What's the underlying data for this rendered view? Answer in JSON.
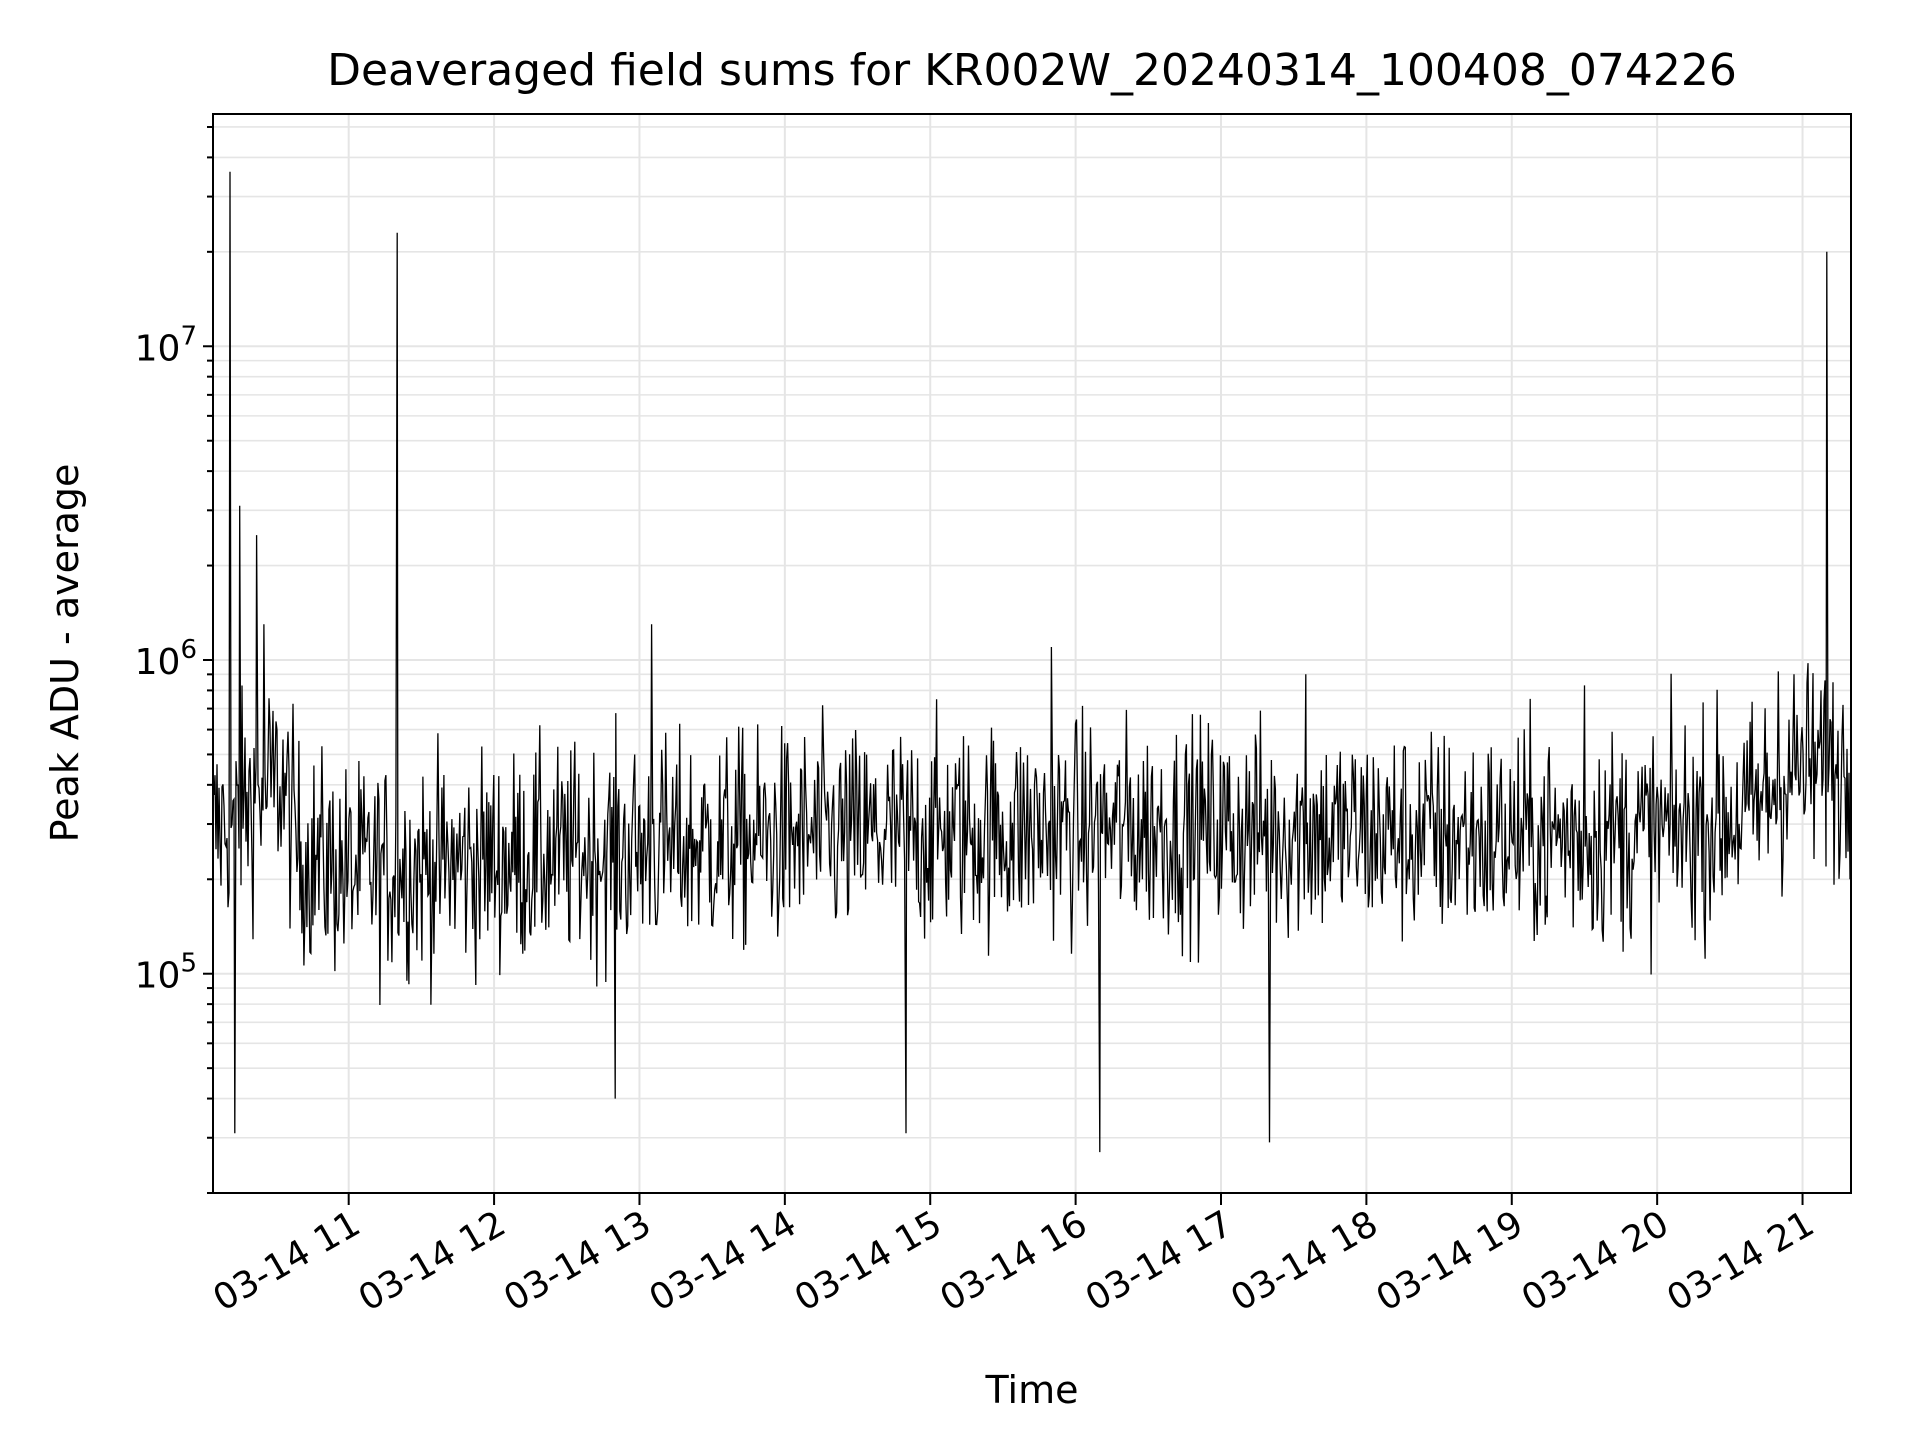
{
  "chart_data": {
    "type": "line",
    "title": "Deaveraged field sums for KR002W_20240314_100408_074226",
    "xlabel": "Time",
    "ylabel": "Peak ADU - average",
    "yscale": "log",
    "xlim": [
      "03-14 10:04",
      "03-14 21:20"
    ],
    "ylim": [
      20000,
      55000000
    ],
    "grid": true,
    "line_color": "#000000",
    "grid_color": "#e5e5e5",
    "x_ticks": [
      "03-14 11",
      "03-14 12",
      "03-14 13",
      "03-14 14",
      "03-14 15",
      "03-14 16",
      "03-14 17",
      "03-14 18",
      "03-14 19",
      "03-14 20",
      "03-14 21"
    ],
    "y_ticks": [
      {
        "base": "10",
        "exp": "5",
        "value": 100000
      },
      {
        "base": "10",
        "exp": "6",
        "value": 1000000
      },
      {
        "base": "10",
        "exp": "7",
        "value": 10000000
      }
    ],
    "baseline": [
      {
        "t": "03-14 10:04",
        "y": 280000
      },
      {
        "t": "03-14 10:20",
        "y": 360000
      },
      {
        "t": "03-14 10:32",
        "y": 420000
      },
      {
        "t": "03-14 10:40",
        "y": 240000
      },
      {
        "t": "03-14 11:00",
        "y": 210000
      },
      {
        "t": "03-14 12:00",
        "y": 230000
      },
      {
        "t": "03-14 13:00",
        "y": 250000
      },
      {
        "t": "03-14 14:00",
        "y": 270000
      },
      {
        "t": "03-14 15:00",
        "y": 280000
      },
      {
        "t": "03-14 16:00",
        "y": 290000
      },
      {
        "t": "03-14 17:00",
        "y": 290000
      },
      {
        "t": "03-14 18:00",
        "y": 280000
      },
      {
        "t": "03-14 19:00",
        "y": 270000
      },
      {
        "t": "03-14 20:00",
        "y": 280000
      },
      {
        "t": "03-14 20:40",
        "y": 330000
      },
      {
        "t": "03-14 20:55",
        "y": 450000
      },
      {
        "t": "03-14 21:20",
        "y": 450000
      }
    ],
    "spikes": [
      {
        "t": "03-14 10:11",
        "y": 36000000
      },
      {
        "t": "03-14 10:13",
        "y": 31000
      },
      {
        "t": "03-14 10:15",
        "y": 3100000
      },
      {
        "t": "03-14 10:22",
        "y": 2500000
      },
      {
        "t": "03-14 10:25",
        "y": 1300000
      },
      {
        "t": "03-14 11:20",
        "y": 23000000
      },
      {
        "t": "03-14 12:50",
        "y": 40000
      },
      {
        "t": "03-14 13:05",
        "y": 1300000
      },
      {
        "t": "03-14 14:50",
        "y": 31000
      },
      {
        "t": "03-14 15:50",
        "y": 1100000
      },
      {
        "t": "03-14 16:10",
        "y": 27000
      },
      {
        "t": "03-14 17:20",
        "y": 29000
      },
      {
        "t": "03-14 17:35",
        "y": 900000
      },
      {
        "t": "03-14 19:30",
        "y": 830000
      },
      {
        "t": "03-14 20:50",
        "y": 920000
      },
      {
        "t": "03-14 21:10",
        "y": 20000000
      }
    ]
  }
}
